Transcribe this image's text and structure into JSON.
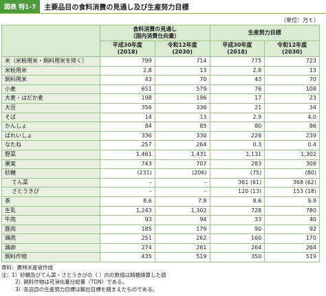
{
  "header": {
    "label": "図表 特1-7",
    "title": "主要品目の食料消費の見通し及び生産努力目標"
  },
  "unit": "（単位：万ｔ）",
  "table": {
    "groups": [
      {
        "lines": [
          "食料消費の見通し",
          "（国内消費仕向量）"
        ]
      },
      {
        "lines": [
          "生産努力目標"
        ]
      }
    ],
    "columns": [
      {
        "lines": [
          "平成30年度",
          "(2018)"
        ]
      },
      {
        "lines": [
          "令和12年度",
          "(2030)"
        ]
      },
      {
        "lines": [
          "平成30年度",
          "(2018)"
        ]
      },
      {
        "lines": [
          "令和12年度",
          "(2030)"
        ]
      }
    ],
    "rows": [
      {
        "label": "米（米粉用米・飼料用米を除く）",
        "cells": [
          "799",
          "714",
          "775",
          "723"
        ]
      },
      {
        "label": "米粉用米",
        "cells": [
          "2.8",
          "13",
          "2.8",
          "13"
        ]
      },
      {
        "label": "飼料用米",
        "cells": [
          "43",
          "70",
          "43",
          "70"
        ]
      },
      {
        "label": "小麦",
        "cells": [
          "651",
          "579",
          "76",
          "108"
        ]
      },
      {
        "label": "大麦・はだか麦",
        "cells": [
          "198",
          "196",
          "17",
          "23"
        ]
      },
      {
        "label": "大豆",
        "cells": [
          "356",
          "336",
          "21",
          "34"
        ]
      },
      {
        "label": "そば",
        "cells": [
          "14",
          "13",
          "2.9",
          "4.0"
        ]
      },
      {
        "label": "かんしょ",
        "cells": [
          "84",
          "85",
          "80",
          "86"
        ]
      },
      {
        "label": "ばれいしょ",
        "cells": [
          "336",
          "330",
          "226",
          "239"
        ]
      },
      {
        "label": "なたね",
        "cells": [
          "257",
          "264",
          "0.3",
          "0.4"
        ]
      },
      {
        "label": "野菜",
        "cells": [
          "1,461",
          "1,431",
          "1,131",
          "1,302"
        ]
      },
      {
        "label": "果実",
        "cells": [
          "743",
          "707",
          "283",
          "308"
        ]
      },
      {
        "label": "砂糖",
        "cells": [
          "(231)",
          "(206)",
          "(75)",
          "(80)"
        ]
      },
      {
        "label": "てん菜",
        "sub": true,
        "cells": [
          "–",
          "–",
          "361 (61)",
          "368 (62)"
        ]
      },
      {
        "label": "さとうきび",
        "sub": true,
        "cells": [
          "–",
          "–",
          "120 (13)",
          "153 (18)"
        ]
      },
      {
        "label": "茶",
        "cells": [
          "8.6",
          "7.9",
          "8.6",
          "9.9"
        ]
      },
      {
        "label": "生乳",
        "cells": [
          "1,243",
          "1,302",
          "728",
          "780"
        ]
      },
      {
        "label": "牛肉",
        "cells": [
          "93",
          "94",
          "33",
          "40"
        ]
      },
      {
        "label": "豚肉",
        "cells": [
          "185",
          "179",
          "90",
          "92"
        ]
      },
      {
        "label": "鶏肉",
        "cells": [
          "251",
          "262",
          "160",
          "170"
        ]
      },
      {
        "label": "鶏卵",
        "cells": [
          "274",
          "261",
          "264",
          "264"
        ]
      },
      {
        "label": "飼料作物",
        "cells": [
          "435",
          "519",
          "350",
          "519"
        ]
      }
    ]
  },
  "notes": [
    "資料：農林水産省作成",
    "注：1）砂糖及びてん菜・さとうきびの（ ）内の数値は精糖換算した値",
    "2）飼料作物は可消化養分総量（TDN）である。",
    "3）各品目の生産努力目標は輸出目標を踏まえたものである。"
  ]
}
